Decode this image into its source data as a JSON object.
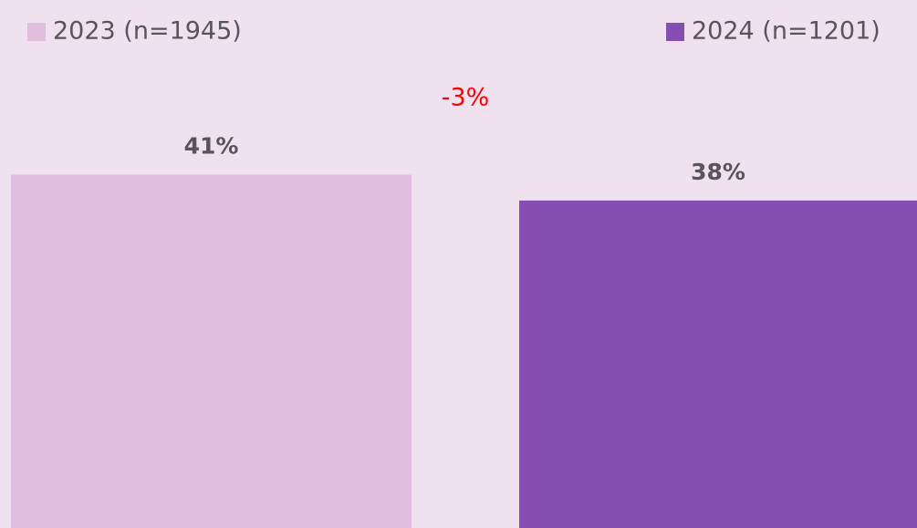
{
  "chart_data": {
    "type": "bar",
    "series": [
      {
        "name": "2023 (n=1945)",
        "color": "#dfbfdd",
        "values": [
          41
        ],
        "value_labels": [
          "41%"
        ]
      },
      {
        "name": "2024 (n=1201)",
        "color": "#874eb1",
        "values": [
          38
        ],
        "value_labels": [
          "38%"
        ]
      }
    ],
    "annotation": {
      "text": "-3%",
      "color": "#ff0000"
    }
  }
}
